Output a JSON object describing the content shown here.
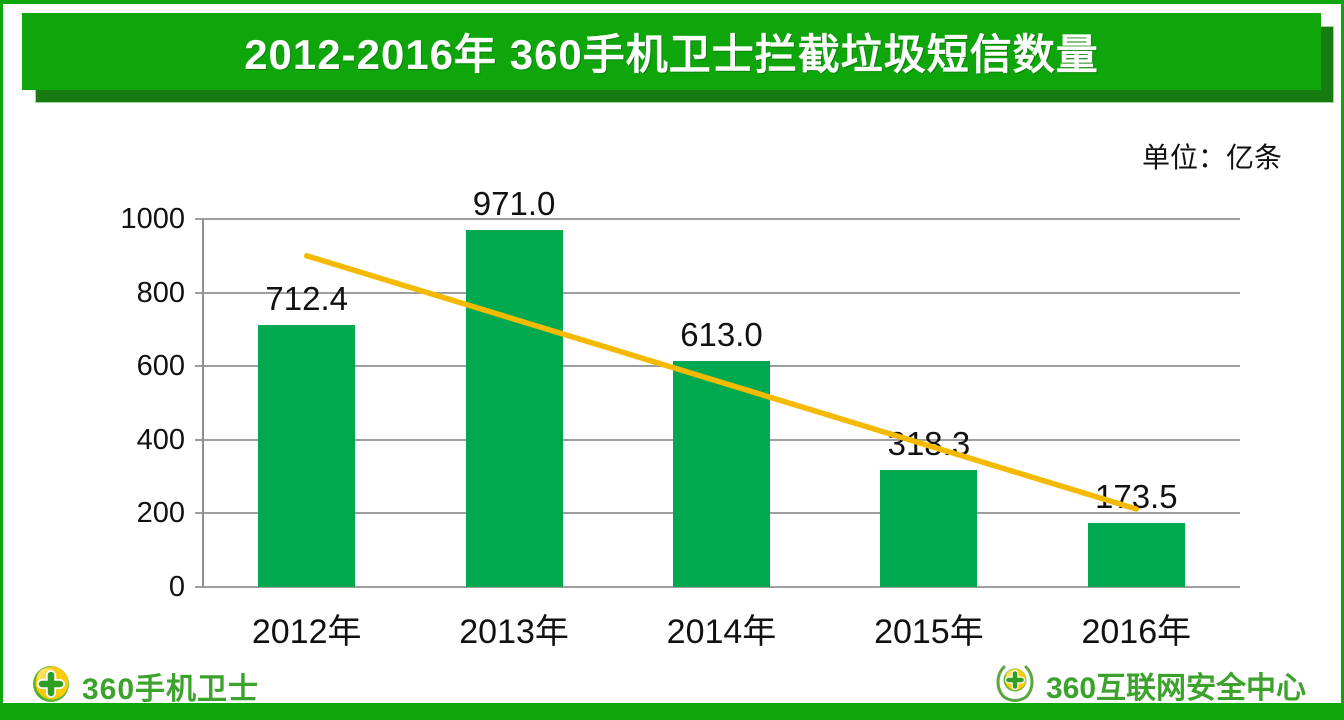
{
  "header": {
    "title": "2012-2016年 360手机卫士拦截垃圾短信数量",
    "banner_color": "#0fa60c",
    "banner_shadow_color": "#187b11",
    "title_color": "#ffffff"
  },
  "unit_label": "单位：亿条",
  "chart_data": {
    "type": "bar",
    "title": "2012-2016年 360手机卫士拦截垃圾短信数量",
    "unit": "亿条",
    "categories": [
      "2012年",
      "2013年",
      "2014年",
      "2015年",
      "2016年"
    ],
    "values": [
      712.4,
      971.0,
      613.0,
      318.3,
      173.5
    ],
    "value_labels": [
      "712.4",
      "971.0",
      "613.0",
      "318.3",
      "173.5"
    ],
    "xlabel": "",
    "ylabel": "",
    "ylim": [
      0,
      1000
    ],
    "yticks": [
      0,
      200,
      400,
      600,
      800,
      1000
    ],
    "grid": true,
    "legend_position": "none",
    "bar_color": "#00a950",
    "grid_color": "#9e9e9e",
    "trendline": {
      "type": "linear",
      "color": "#f5b900",
      "start_value": 900,
      "end_value": 212
    }
  },
  "footer": {
    "left_logo_text": "360手机卫士",
    "right_logo_text": "360互联网安全中心",
    "logo_text_color": "#3ba22b",
    "logo_ball_color": "#f9cb0b",
    "logo_leaf_color": "#58b431"
  },
  "frame": {
    "border_color": "#0fa60c"
  }
}
